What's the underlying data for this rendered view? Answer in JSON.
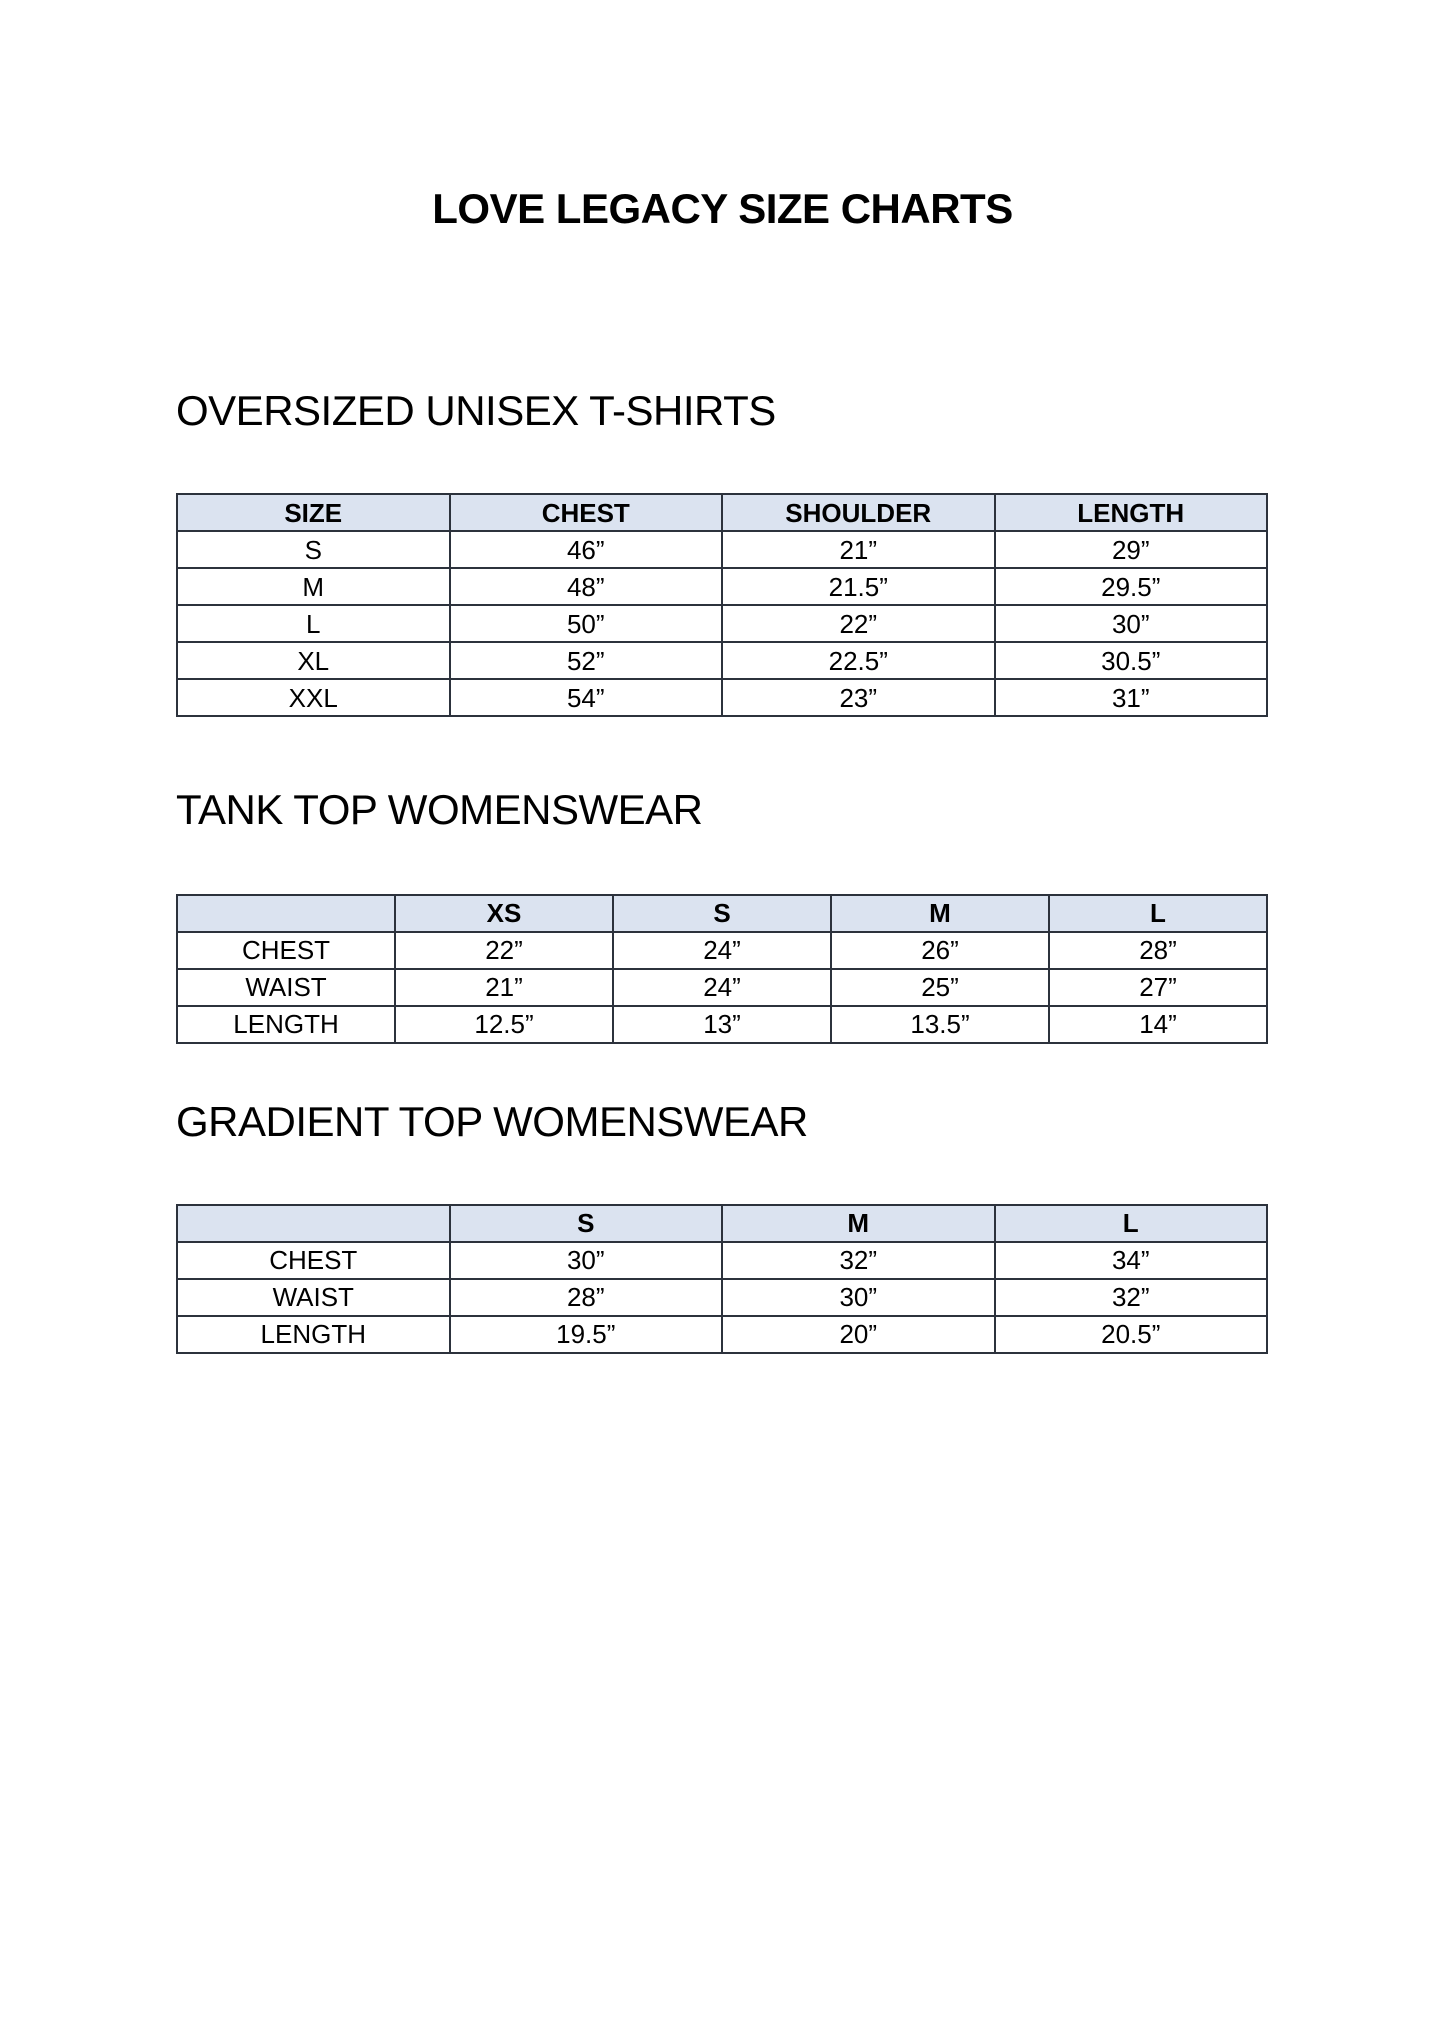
{
  "page": {
    "title": "LOVE LEGACY SIZE CHARTS"
  },
  "colors": {
    "page_background": "#ffffff",
    "table_header_background": "#dbe3f0",
    "table_border": "#2c323c",
    "text": "#000000"
  },
  "sections": [
    {
      "heading": "OVERSIZED UNISEX T-SHIRTS",
      "table": {
        "columns": [
          "SIZE",
          "CHEST",
          "SHOULDER",
          "LENGTH"
        ],
        "rows": [
          [
            "S",
            "46”",
            "21”",
            "29”"
          ],
          [
            "M",
            "48”",
            "21.5”",
            "29.5”"
          ],
          [
            "L",
            "50”",
            "22”",
            "30”"
          ],
          [
            "XL",
            "52”",
            "22.5”",
            "30.5”"
          ],
          [
            "XXL",
            "54”",
            "23”",
            "31”"
          ]
        ]
      }
    },
    {
      "heading": "TANK TOP WOMENSWEAR",
      "table": {
        "columns": [
          "",
          "XS",
          "S",
          "M",
          "L"
        ],
        "rows": [
          [
            "CHEST",
            "22”",
            "24”",
            "26”",
            "28”"
          ],
          [
            "WAIST",
            "21”",
            "24”",
            "25”",
            "27”"
          ],
          [
            "LENGTH",
            "12.5”",
            "13”",
            "13.5”",
            "14”"
          ]
        ]
      }
    },
    {
      "heading": "GRADIENT TOP WOMENSWEAR",
      "table": {
        "columns": [
          "",
          "S",
          "M",
          "L"
        ],
        "rows": [
          [
            "CHEST",
            "30”",
            "32”",
            "34”"
          ],
          [
            "WAIST",
            "28”",
            "30”",
            "32”"
          ],
          [
            "LENGTH",
            "19.5”",
            "20”",
            "20.5”"
          ]
        ]
      }
    }
  ]
}
